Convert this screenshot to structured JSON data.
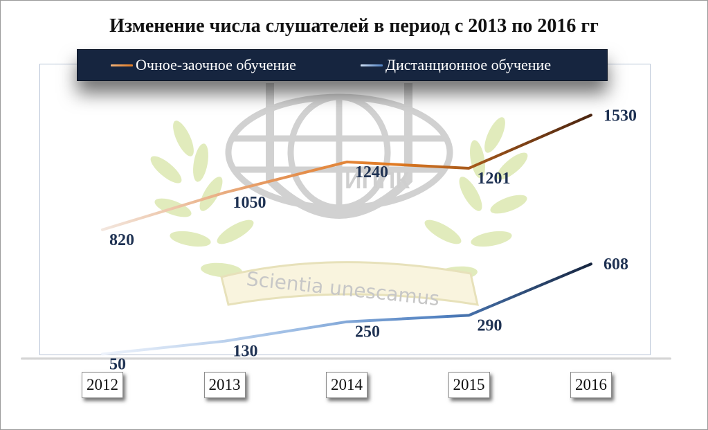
{
  "chart_data": {
    "type": "line",
    "title": "Изменение числа слушателей в период с 2013 по 2016 гг",
    "categories": [
      "2012",
      "2013",
      "2014",
      "2015",
      "2016"
    ],
    "series": [
      {
        "name": "Очное-заочное обучение",
        "values": [
          820,
          1050,
          1240,
          1201,
          1530
        ],
        "color": "#e07a22",
        "end_color": "#4a2410"
      },
      {
        "name": "Дистанционное обучение",
        "values": [
          50,
          130,
          250,
          290,
          608
        ],
        "color": "#4f7fbf",
        "end_color": "#16253f"
      }
    ],
    "ylim": [
      0,
      1900
    ],
    "grid": false,
    "legend_position": "top"
  },
  "watermark": {
    "logo_text": "ИППК",
    "motto": "Scientia unescamus"
  },
  "colors": {
    "legend_bg": "#16253f",
    "label_text": "#1f3253",
    "laurel": "#d8e6a8"
  }
}
